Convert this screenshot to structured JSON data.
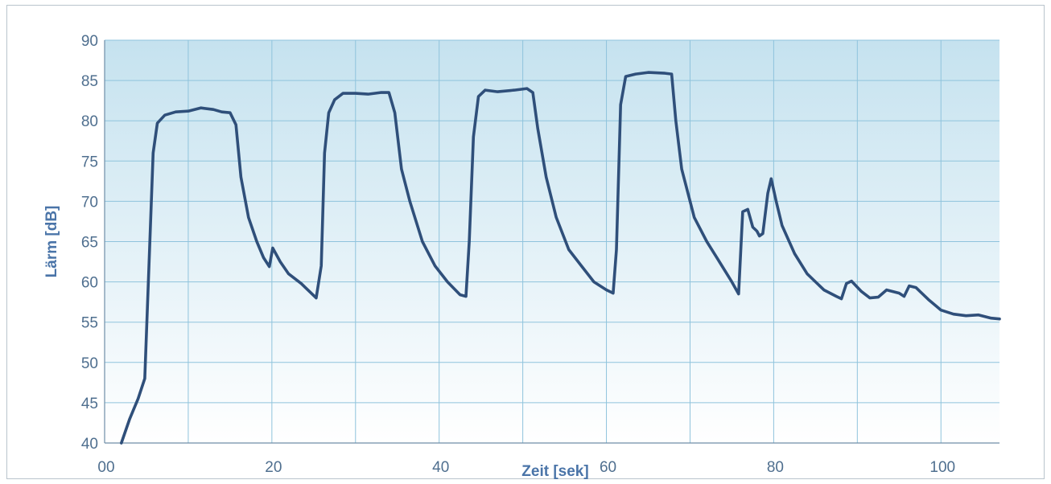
{
  "chart_data": {
    "type": "line",
    "xlabel": "Zeit [sek]",
    "ylabel": "Lärm [dB]",
    "xlim": [
      0,
      107
    ],
    "ylim": [
      40,
      90
    ],
    "x_ticks": [
      0,
      20,
      40,
      60,
      80,
      100
    ],
    "x_tick_labels": [
      "00",
      "20",
      "40",
      "60",
      "80",
      "100"
    ],
    "y_ticks": [
      40,
      45,
      50,
      55,
      60,
      65,
      70,
      75,
      80,
      85,
      90
    ],
    "y_tick_labels": [
      "40",
      "45",
      "50",
      "55",
      "60",
      "65",
      "70",
      "75",
      "80",
      "85",
      "90"
    ],
    "grid": true,
    "legend": "none",
    "colors": {
      "line": "#2f4f7a",
      "grid": "#8fc3dc",
      "band_top": "#c5e2ef",
      "axis_text": "#4f6f8f",
      "title_text": "#4a74a8"
    },
    "series": [
      {
        "points": [
          [
            2.0,
            40.0
          ],
          [
            3.0,
            43.0
          ],
          [
            4.0,
            45.5
          ],
          [
            4.8,
            48.0
          ],
          [
            5.3,
            62.0
          ],
          [
            5.8,
            76.0
          ],
          [
            6.3,
            79.7
          ],
          [
            7.2,
            80.7
          ],
          [
            8.5,
            81.1
          ],
          [
            10.0,
            81.2
          ],
          [
            11.5,
            81.6
          ],
          [
            13.0,
            81.4
          ],
          [
            14.0,
            81.1
          ],
          [
            15.0,
            81.0
          ],
          [
            15.7,
            79.5
          ],
          [
            16.3,
            73.0
          ],
          [
            17.2,
            68.0
          ],
          [
            18.2,
            65.0
          ],
          [
            19.0,
            63.0
          ],
          [
            19.7,
            61.9
          ],
          [
            20.1,
            64.2
          ],
          [
            21.0,
            62.5
          ],
          [
            22.0,
            61.0
          ],
          [
            23.5,
            59.8
          ],
          [
            25.3,
            58.0
          ],
          [
            25.9,
            62.0
          ],
          [
            26.3,
            76.0
          ],
          [
            26.8,
            81.0
          ],
          [
            27.5,
            82.6
          ],
          [
            28.5,
            83.4
          ],
          [
            30.0,
            83.4
          ],
          [
            31.5,
            83.3
          ],
          [
            33.0,
            83.5
          ],
          [
            34.0,
            83.5
          ],
          [
            34.7,
            81.0
          ],
          [
            35.5,
            74.0
          ],
          [
            36.5,
            70.0
          ],
          [
            38.0,
            65.0
          ],
          [
            39.5,
            62.0
          ],
          [
            41.0,
            60.0
          ],
          [
            42.5,
            58.4
          ],
          [
            43.2,
            58.2
          ],
          [
            43.6,
            65.0
          ],
          [
            44.1,
            78.0
          ],
          [
            44.7,
            83.0
          ],
          [
            45.5,
            83.8
          ],
          [
            47.0,
            83.6
          ],
          [
            49.0,
            83.8
          ],
          [
            50.5,
            84.0
          ],
          [
            51.2,
            83.5
          ],
          [
            51.8,
            79.0
          ],
          [
            52.8,
            73.0
          ],
          [
            54.0,
            68.0
          ],
          [
            55.5,
            64.0
          ],
          [
            57.0,
            62.0
          ],
          [
            58.5,
            60.0
          ],
          [
            60.0,
            59.0
          ],
          [
            60.8,
            58.6
          ],
          [
            61.2,
            64.0
          ],
          [
            61.7,
            82.0
          ],
          [
            62.3,
            85.5
          ],
          [
            63.5,
            85.8
          ],
          [
            65.0,
            86.0
          ],
          [
            67.0,
            85.9
          ],
          [
            67.8,
            85.8
          ],
          [
            68.3,
            80.0
          ],
          [
            69.0,
            74.0
          ],
          [
            70.5,
            68.0
          ],
          [
            72.0,
            65.0
          ],
          [
            73.5,
            62.5
          ],
          [
            75.0,
            60.0
          ],
          [
            75.8,
            58.5
          ],
          [
            76.3,
            68.7
          ],
          [
            76.9,
            69.0
          ],
          [
            77.5,
            66.8
          ],
          [
            78.0,
            66.3
          ],
          [
            78.3,
            65.7
          ],
          [
            78.7,
            66.0
          ],
          [
            79.3,
            71.0
          ],
          [
            79.7,
            72.8
          ],
          [
            80.3,
            70.0
          ],
          [
            81.0,
            67.0
          ],
          [
            82.5,
            63.5
          ],
          [
            84.0,
            61.0
          ],
          [
            86.0,
            59.0
          ],
          [
            87.5,
            58.2
          ],
          [
            88.1,
            57.9
          ],
          [
            88.7,
            59.8
          ],
          [
            89.3,
            60.1
          ],
          [
            90.5,
            58.8
          ],
          [
            91.5,
            58.0
          ],
          [
            92.5,
            58.1
          ],
          [
            93.5,
            59.0
          ],
          [
            95.0,
            58.6
          ],
          [
            95.6,
            58.2
          ],
          [
            96.2,
            59.5
          ],
          [
            97.0,
            59.3
          ],
          [
            98.5,
            57.8
          ],
          [
            100.0,
            56.5
          ],
          [
            101.5,
            56.0
          ],
          [
            103.0,
            55.8
          ],
          [
            104.5,
            55.9
          ],
          [
            106.0,
            55.5
          ],
          [
            107.0,
            55.4
          ]
        ]
      }
    ]
  }
}
